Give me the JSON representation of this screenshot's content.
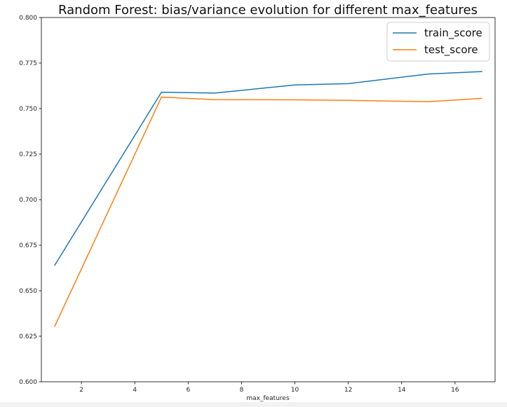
{
  "chart_data": {
    "type": "line",
    "title": "Random Forest: bias/variance evolution for different max_features",
    "xlabel": "max_features",
    "ylabel": "",
    "xlim": [
      0.5,
      17.5
    ],
    "ylim": [
      0.6,
      0.8
    ],
    "xticks": [
      2,
      4,
      6,
      8,
      10,
      12,
      14,
      16
    ],
    "xtick_labels": [
      "2",
      "4",
      "6",
      "8",
      "10",
      "12",
      "14",
      "16"
    ],
    "yticks": [
      0.6,
      0.625,
      0.65,
      0.675,
      0.7,
      0.725,
      0.75,
      0.775,
      0.8
    ],
    "ytick_labels": [
      "0.600",
      "0.625",
      "0.650",
      "0.675",
      "0.700",
      "0.725",
      "0.750",
      "0.775",
      "0.800"
    ],
    "grid": false,
    "legend_position": "top-right",
    "x": [
      1,
      5,
      7,
      10,
      12,
      15,
      17
    ],
    "series": [
      {
        "name": "train_score",
        "color": "#1f77b4",
        "values": [
          0.664,
          0.759,
          0.7585,
          0.763,
          0.7637,
          0.769,
          0.7703
        ]
      },
      {
        "name": "test_score",
        "color": "#ff7f0e",
        "values": [
          0.6305,
          0.7563,
          0.7549,
          0.7548,
          0.7545,
          0.7538,
          0.7556
        ]
      }
    ]
  }
}
